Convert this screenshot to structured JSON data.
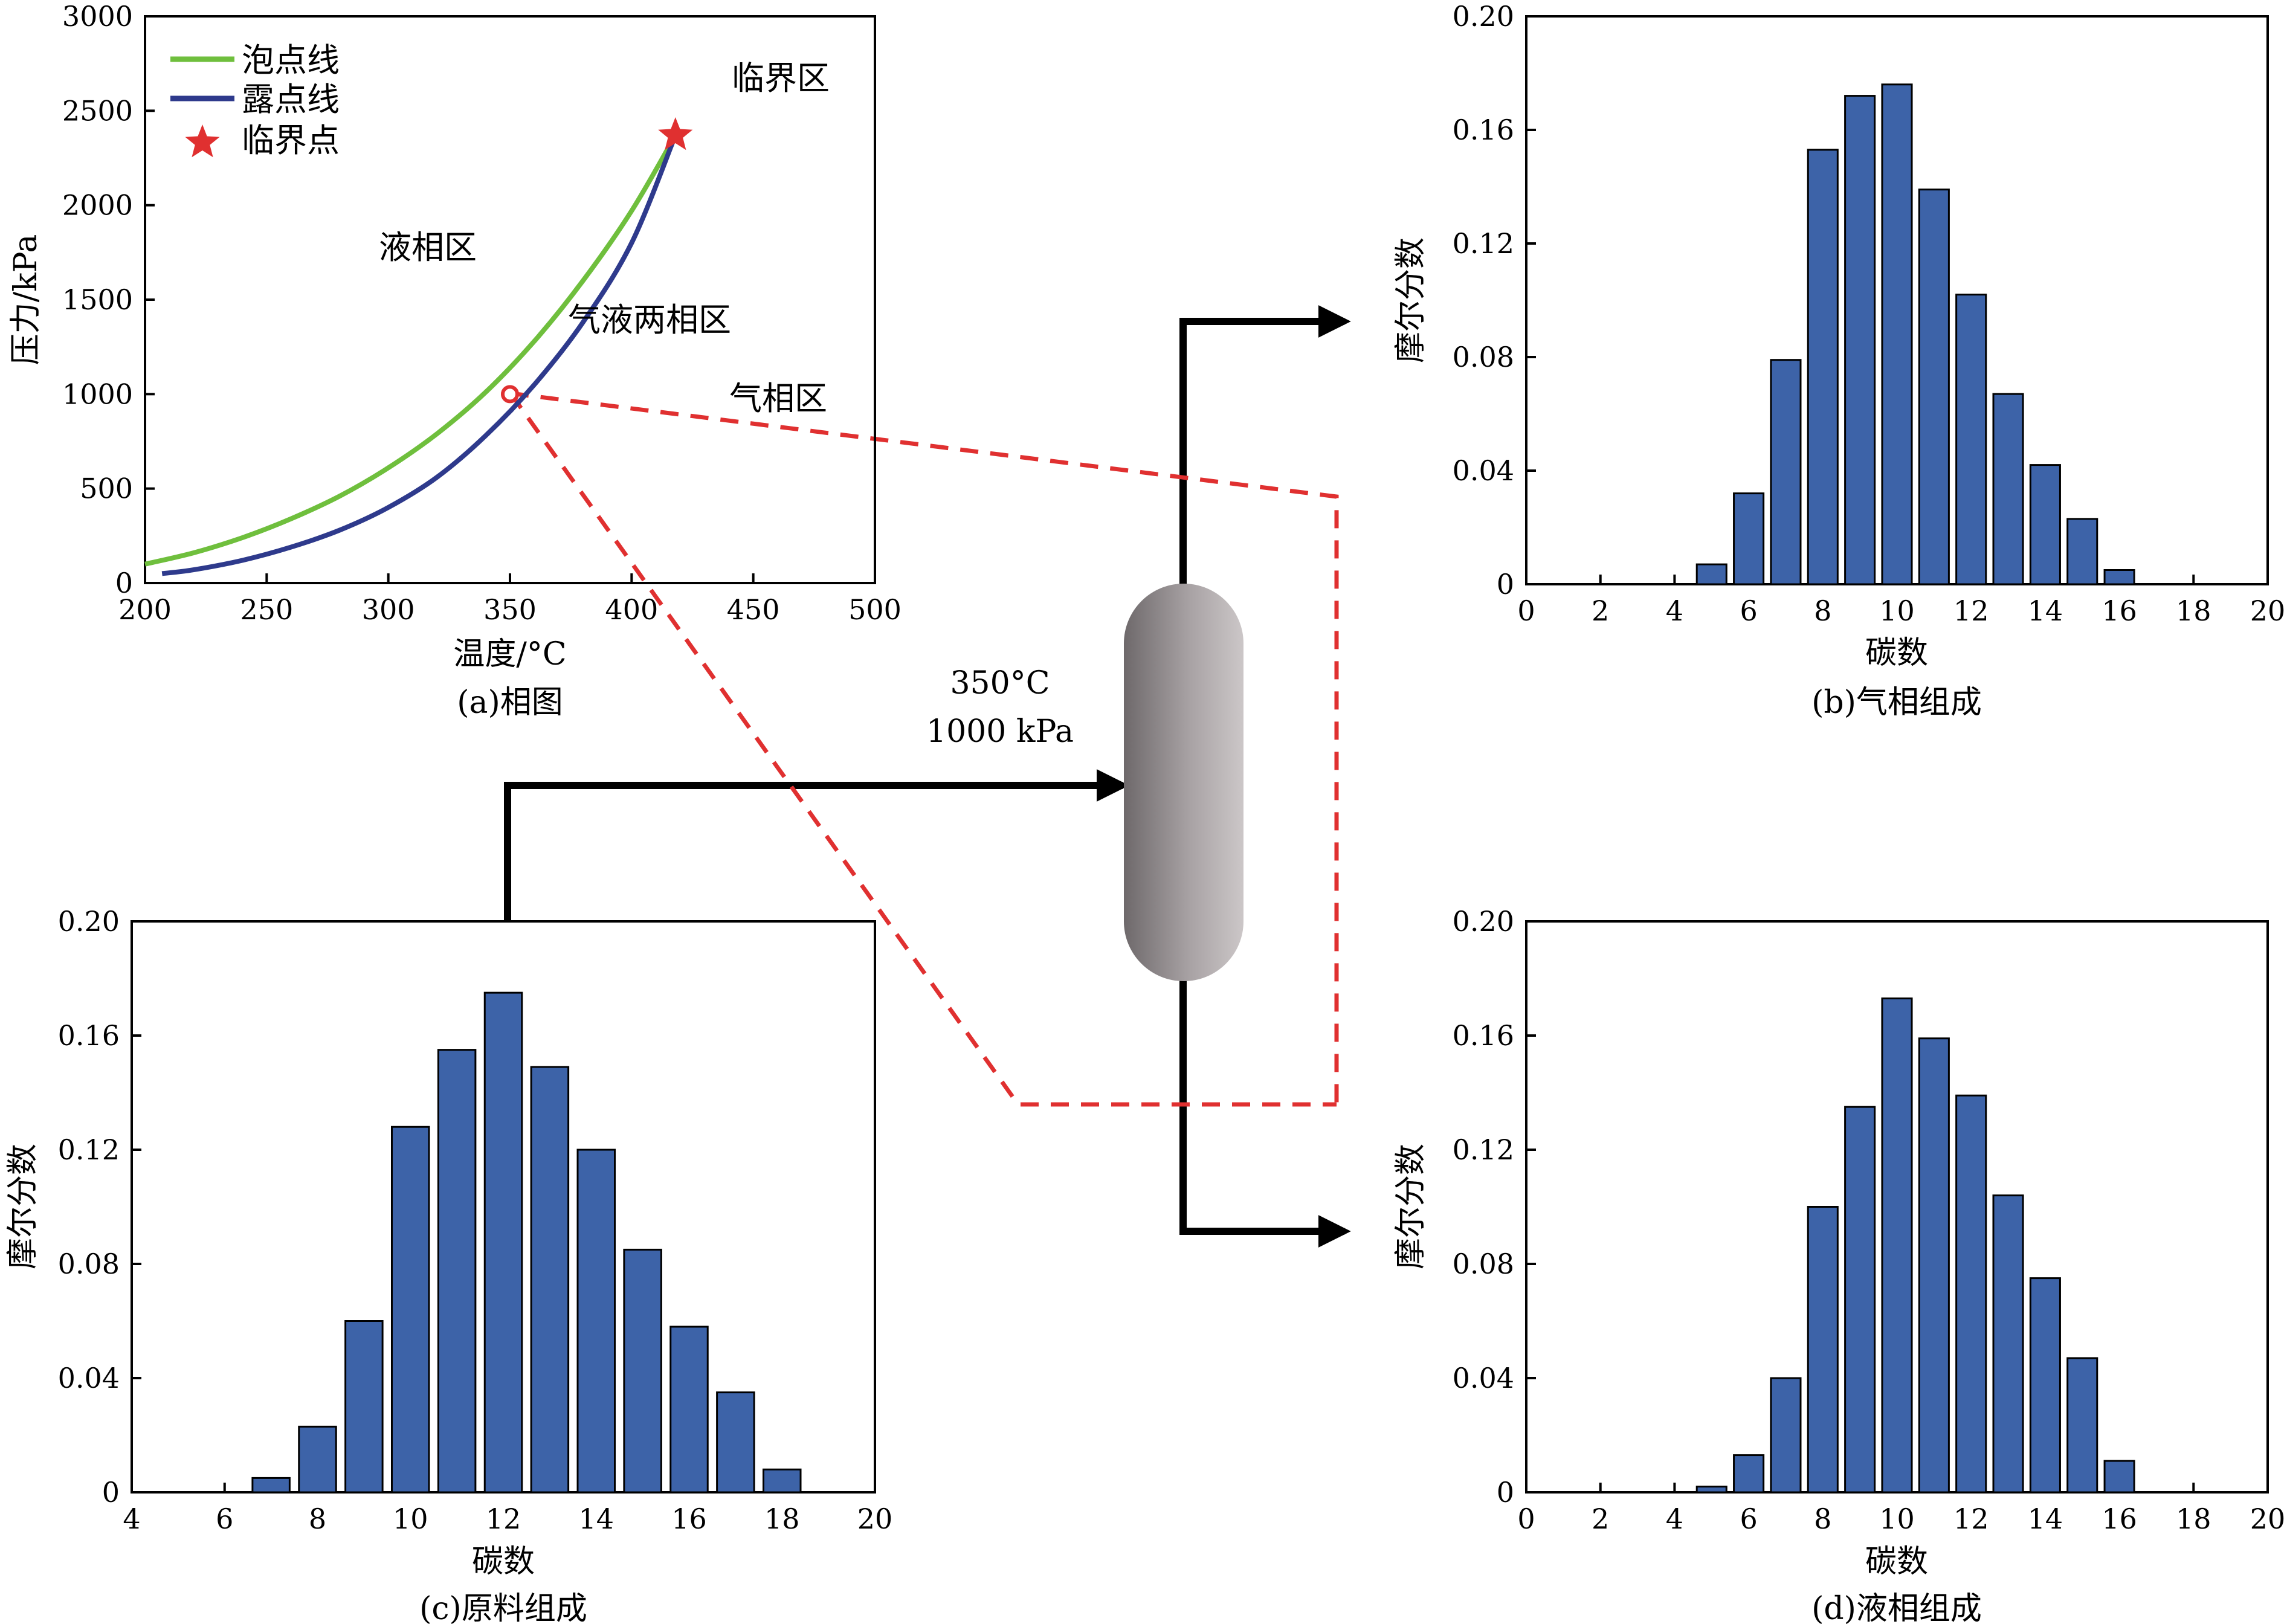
{
  "process": {
    "condition_temp": "350°C",
    "condition_pressure": "1000 kPa"
  },
  "chart_data": [
    {
      "id": "a",
      "type": "line",
      "caption": "(a)相图",
      "xlabel": "温度/°C",
      "ylabel": "压力/kPa",
      "xlim": [
        200,
        500
      ],
      "ylim": [
        0,
        3000
      ],
      "xticks": [
        200,
        250,
        300,
        350,
        400,
        450,
        500
      ],
      "yticks": [
        0,
        500,
        1000,
        1500,
        2000,
        2500,
        3000
      ],
      "legend": [
        "泡点线",
        "露点线",
        "临界点"
      ],
      "colors": {
        "bubble": "#6fbf3d",
        "dew": "#2e3a8c",
        "critical": "#e03030",
        "operating": "#e03030"
      },
      "series": [
        {
          "name": "泡点线",
          "x": [
            200,
            220,
            240,
            260,
            280,
            300,
            320,
            340,
            360,
            380,
            400,
            418
          ],
          "y": [
            100,
            160,
            240,
            340,
            460,
            610,
            790,
            1010,
            1280,
            1600,
            1970,
            2370
          ]
        },
        {
          "name": "露点线",
          "x": [
            207,
            220,
            240,
            260,
            280,
            300,
            320,
            340,
            360,
            380,
            400,
            418
          ],
          "y": [
            50,
            70,
            120,
            190,
            280,
            400,
            560,
            780,
            1050,
            1380,
            1800,
            2370
          ]
        }
      ],
      "critical_point": {
        "label": "临界点",
        "x": 418,
        "y": 2370
      },
      "operating_point": {
        "x": 350,
        "y": 1000
      },
      "regions": [
        "临界区",
        "液相区",
        "气液两相区",
        "气相区"
      ]
    },
    {
      "id": "b",
      "type": "bar",
      "caption": "(b)气相组成",
      "xlabel": "碳数",
      "ylabel": "摩尔分数",
      "xlim": [
        0,
        20
      ],
      "ylim": [
        0,
        0.2
      ],
      "xticks": [
        0,
        2,
        4,
        6,
        8,
        10,
        12,
        14,
        16,
        18,
        20
      ],
      "yticks": [
        0,
        0.04,
        0.08,
        0.12,
        0.16,
        0.2
      ],
      "xtick_labels": [
        "0",
        "2",
        "4",
        "6",
        "8",
        "10",
        "12",
        "14",
        "16",
        "18",
        "20"
      ],
      "ytick_labels": [
        "0",
        "0.04",
        "0.08",
        "0.12",
        "0.16",
        "0.20"
      ],
      "x": [
        5,
        6,
        7,
        8,
        9,
        10,
        11,
        12,
        13,
        14,
        15,
        16
      ],
      "values": [
        0.007,
        0.032,
        0.079,
        0.153,
        0.172,
        0.176,
        0.139,
        0.102,
        0.067,
        0.042,
        0.023,
        0.005
      ]
    },
    {
      "id": "c",
      "type": "bar",
      "caption": "(c)原料组成",
      "xlabel": "碳数",
      "ylabel": "摩尔分数",
      "xlim": [
        4,
        20
      ],
      "ylim": [
        0,
        0.2
      ],
      "xticks": [
        4,
        6,
        8,
        10,
        12,
        14,
        16,
        18,
        20
      ],
      "yticks": [
        0,
        0.04,
        0.08,
        0.12,
        0.16,
        0.2
      ],
      "xtick_labels": [
        "4",
        "6",
        "8",
        "10",
        "12",
        "14",
        "16",
        "18",
        "20"
      ],
      "ytick_labels": [
        "0",
        "0.04",
        "0.08",
        "0.12",
        "0.16",
        "0.20"
      ],
      "x": [
        7,
        8,
        9,
        10,
        11,
        12,
        13,
        14,
        15,
        16,
        17,
        18
      ],
      "values": [
        0.005,
        0.023,
        0.06,
        0.128,
        0.155,
        0.175,
        0.149,
        0.12,
        0.085,
        0.058,
        0.035,
        0.008
      ]
    },
    {
      "id": "d",
      "type": "bar",
      "caption": "(d)液相组成",
      "xlabel": "碳数",
      "ylabel": "摩尔分数",
      "xlim": [
        0,
        20
      ],
      "ylim": [
        0,
        0.2
      ],
      "xticks": [
        0,
        2,
        4,
        6,
        8,
        10,
        12,
        14,
        16,
        18,
        20
      ],
      "yticks": [
        0,
        0.04,
        0.08,
        0.12,
        0.16,
        0.2
      ],
      "xtick_labels": [
        "0",
        "2",
        "4",
        "6",
        "8",
        "10",
        "12",
        "14",
        "16",
        "18",
        "20"
      ],
      "ytick_labels": [
        "0",
        "0.04",
        "0.08",
        "0.12",
        "0.16",
        "0.20"
      ],
      "x": [
        5,
        6,
        7,
        8,
        9,
        10,
        11,
        12,
        13,
        14,
        15,
        16
      ],
      "values": [
        0.002,
        0.013,
        0.04,
        0.1,
        0.135,
        0.173,
        0.159,
        0.139,
        0.104,
        0.075,
        0.047,
        0.011
      ]
    }
  ]
}
